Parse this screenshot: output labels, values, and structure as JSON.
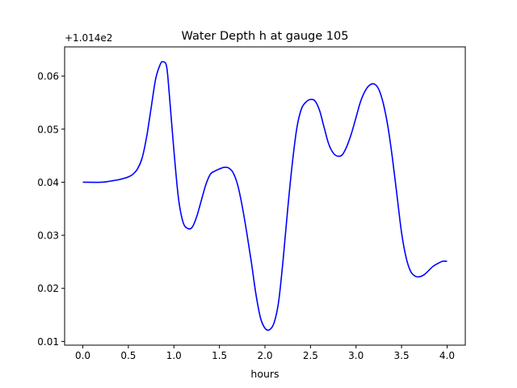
{
  "chart_data": {
    "type": "line",
    "title": "Water Depth h at gauge 105",
    "xlabel": "hours",
    "ylabel": "",
    "offset_label": "+1.014e2",
    "xlim": [
      -0.2,
      4.2
    ],
    "ylim": [
      0.0093,
      0.0655
    ],
    "x_ticks": [
      0.0,
      0.5,
      1.0,
      1.5,
      2.0,
      2.5,
      3.0,
      3.5,
      4.0
    ],
    "x_tick_labels": [
      "0.0",
      "0.5",
      "1.0",
      "1.5",
      "2.0",
      "2.5",
      "3.0",
      "3.5",
      "4.0"
    ],
    "y_ticks": [
      0.01,
      0.02,
      0.03,
      0.04,
      0.05,
      0.06
    ],
    "y_tick_labels": [
      "0.01",
      "0.02",
      "0.03",
      "0.04",
      "0.05",
      "0.06"
    ],
    "grid": false,
    "series": [
      {
        "color": "#0000ff",
        "x": [
          0.0,
          0.2,
          0.3,
          0.4,
          0.5,
          0.55,
          0.6,
          0.65,
          0.7,
          0.75,
          0.8,
          0.85,
          0.88,
          0.92,
          0.95,
          1.0,
          1.05,
          1.1,
          1.15,
          1.2,
          1.25,
          1.3,
          1.35,
          1.4,
          1.45,
          1.5,
          1.55,
          1.6,
          1.65,
          1.7,
          1.75,
          1.8,
          1.85,
          1.9,
          1.95,
          2.0,
          2.05,
          2.1,
          2.15,
          2.2,
          2.25,
          2.3,
          2.35,
          2.4,
          2.45,
          2.5,
          2.55,
          2.6,
          2.65,
          2.7,
          2.75,
          2.8,
          2.85,
          2.9,
          2.95,
          3.0,
          3.05,
          3.1,
          3.15,
          3.2,
          3.25,
          3.3,
          3.35,
          3.4,
          3.45,
          3.5,
          3.55,
          3.6,
          3.65,
          3.7,
          3.75,
          3.8,
          3.85,
          3.9,
          3.95,
          4.0
        ],
        "y": [
          0.04,
          0.04,
          0.0402,
          0.0405,
          0.041,
          0.0415,
          0.0425,
          0.0445,
          0.0485,
          0.054,
          0.0595,
          0.0622,
          0.0627,
          0.0618,
          0.0565,
          0.046,
          0.037,
          0.0325,
          0.0313,
          0.0315,
          0.0335,
          0.0365,
          0.0395,
          0.0415,
          0.0421,
          0.0425,
          0.0428,
          0.0427,
          0.0418,
          0.0395,
          0.0355,
          0.0305,
          0.025,
          0.019,
          0.0145,
          0.0125,
          0.0122,
          0.0135,
          0.0175,
          0.0255,
          0.035,
          0.0435,
          0.0502,
          0.0538,
          0.0551,
          0.0556,
          0.0553,
          0.0535,
          0.0503,
          0.0472,
          0.0455,
          0.0449,
          0.0452,
          0.0468,
          0.0492,
          0.0522,
          0.0552,
          0.0572,
          0.0583,
          0.0585,
          0.0575,
          0.0548,
          0.0505,
          0.0445,
          0.0375,
          0.0305,
          0.0258,
          0.0232,
          0.0223,
          0.0222,
          0.0226,
          0.0234,
          0.0242,
          0.0247,
          0.0251,
          0.0251
        ]
      }
    ]
  }
}
